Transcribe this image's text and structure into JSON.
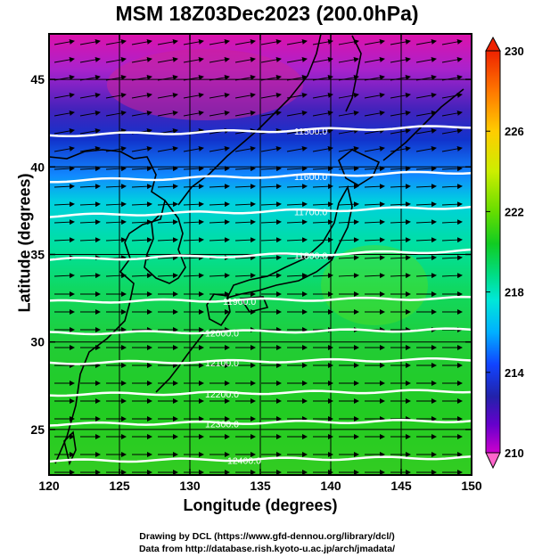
{
  "title": "MSM 18Z03Dec2023 (200.0hPa)",
  "credits": [
    "Drawing by DCL (https://www.gfd-dennou.org/library/dcl/)",
    "Data from http://database.rish.kyoto-u.ac.jp/arch/jmadata/"
  ],
  "axes": {
    "x_label": "Longitude (degrees)",
    "y_label": "Latitude  (degrees)",
    "x_ticks": [
      "120",
      "125",
      "130",
      "135",
      "140",
      "145",
      "150"
    ],
    "y_ticks": [
      "25",
      "30",
      "35",
      "40",
      "45"
    ],
    "x_range": [
      120,
      150
    ],
    "y_range": [
      22.4,
      47.6
    ]
  },
  "colorbar": {
    "range": [
      210,
      230
    ],
    "tick_labels": [
      "230",
      "226",
      "222",
      "218",
      "214",
      "210"
    ],
    "colors": [
      "#ff66cc",
      "#cc00cc",
      "#6600cc",
      "#2222aa",
      "#1144ff",
      "#00b0ff",
      "#00e8d8",
      "#00dd88",
      "#11cc22",
      "#66dd00",
      "#ccee00",
      "#ffcc00",
      "#ff7700",
      "#ee2200"
    ]
  },
  "contours": {
    "unit": "m",
    "levels": [
      {
        "label": "11500.0",
        "lat": 41.8
      },
      {
        "label": "11600.0",
        "lat": 39.2
      },
      {
        "label": "11700.0",
        "lat": 37.2
      },
      {
        "label": "11800.0",
        "lat": 34.7
      },
      {
        "label": "11900.0",
        "lat": 32.3
      },
      {
        "label": "12000.0",
        "lat": 30.5
      },
      {
        "label": "12100.0",
        "lat": 28.8
      },
      {
        "label": "12200.0",
        "lat": 27.0
      },
      {
        "label": "12300.0",
        "lat": 25.3
      },
      {
        "label": "12400.0",
        "lat": 23.2
      }
    ]
  }
}
